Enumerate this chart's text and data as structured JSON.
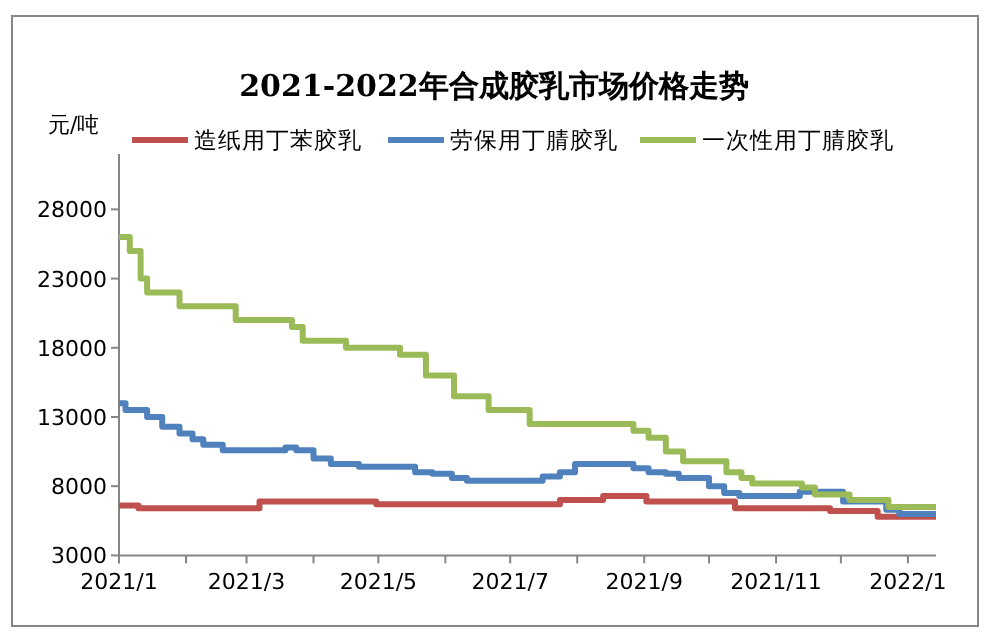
{
  "chart_data": {
    "type": "step",
    "title": "2021-2022年合成胶乳市场价格走势",
    "ylabel": "元/吨",
    "legend": "top",
    "grid": false,
    "marker": "none",
    "line_style": "solid",
    "xlim": [
      "2021-01-01",
      "2022-01-14"
    ],
    "ylim": [
      3000,
      32000
    ],
    "yticks": [
      3000,
      8000,
      13000,
      18000,
      23000,
      28000
    ],
    "xticks": [
      {
        "value": "2021-01-01",
        "label": "2021/1"
      },
      {
        "value": "2021-02-01",
        "label": null
      },
      {
        "value": "2021-03-01",
        "label": "2021/3"
      },
      {
        "value": "2021-04-01",
        "label": null
      },
      {
        "value": "2021-05-01",
        "label": "2021/5"
      },
      {
        "value": "2021-06-01",
        "label": null
      },
      {
        "value": "2021-07-01",
        "label": "2021/7"
      },
      {
        "value": "2021-08-01",
        "label": null
      },
      {
        "value": "2021-09-01",
        "label": "2021/9"
      },
      {
        "value": "2021-10-01",
        "label": null
      },
      {
        "value": "2021-11-01",
        "label": "2021/11"
      },
      {
        "value": "2021-12-01",
        "label": null
      },
      {
        "value": "2022-01-01",
        "label": "2022/1"
      }
    ],
    "series": [
      {
        "name": "造纸用丁苯胶乳",
        "color": "#c0504d",
        "x": [
          "2021-01-01",
          "2021-01-10",
          "2021-03-07",
          "2021-04-30",
          "2021-07-24",
          "2021-08-13",
          "2021-09-02",
          "2021-10-13",
          "2021-11-26",
          "2021-12-18",
          "2022-01-14"
        ],
        "values": [
          6600,
          6400,
          6900,
          6700,
          7000,
          7300,
          6900,
          6400,
          6200,
          5800,
          5800
        ]
      },
      {
        "name": "劳保用丁腈胶乳",
        "color": "#4f81bd",
        "x": [
          "2021-01-01",
          "2021-01-04",
          "2021-01-14",
          "2021-01-21",
          "2021-01-29",
          "2021-02-04",
          "2021-02-09",
          "2021-02-18",
          "2021-03-19",
          "2021-03-24",
          "2021-04-01",
          "2021-04-09",
          "2021-04-22",
          "2021-05-18",
          "2021-05-26",
          "2021-06-04",
          "2021-06-11",
          "2021-07-16",
          "2021-07-24",
          "2021-07-31",
          "2021-08-27",
          "2021-09-03",
          "2021-09-11",
          "2021-09-17",
          "2021-10-01",
          "2021-10-08",
          "2021-10-15",
          "2021-11-12",
          "2021-12-02",
          "2021-12-22",
          "2021-12-28",
          "2022-01-14"
        ],
        "values": [
          14000,
          13500,
          13000,
          12300,
          11800,
          11400,
          11000,
          10600,
          10800,
          10600,
          10000,
          9600,
          9400,
          9000,
          8900,
          8600,
          8400,
          8700,
          9000,
          9600,
          9300,
          9000,
          8900,
          8600,
          8000,
          7500,
          7300,
          7600,
          6900,
          6300,
          6000,
          6000
        ]
      },
      {
        "name": "一次性用丁腈胶乳",
        "color": "#9bbb59",
        "x": [
          "2021-01-01",
          "2021-01-06",
          "2021-01-11",
          "2021-01-14",
          "2021-01-29",
          "2021-02-24",
          "2021-03-22",
          "2021-03-27",
          "2021-04-16",
          "2021-05-11",
          "2021-05-23",
          "2021-06-05",
          "2021-06-21",
          "2021-07-10",
          "2021-08-27",
          "2021-09-03",
          "2021-09-11",
          "2021-09-19",
          "2021-10-09",
          "2021-10-16",
          "2021-10-21",
          "2021-11-13",
          "2021-11-19",
          "2021-12-05",
          "2021-12-23",
          "2022-01-14"
        ],
        "values": [
          26000,
          25000,
          23000,
          22000,
          21000,
          20000,
          19500,
          18500,
          18000,
          17500,
          16000,
          14500,
          13500,
          12500,
          12000,
          11500,
          10500,
          9800,
          9000,
          8600,
          8200,
          7900,
          7400,
          7000,
          6500,
          6500
        ]
      }
    ]
  }
}
